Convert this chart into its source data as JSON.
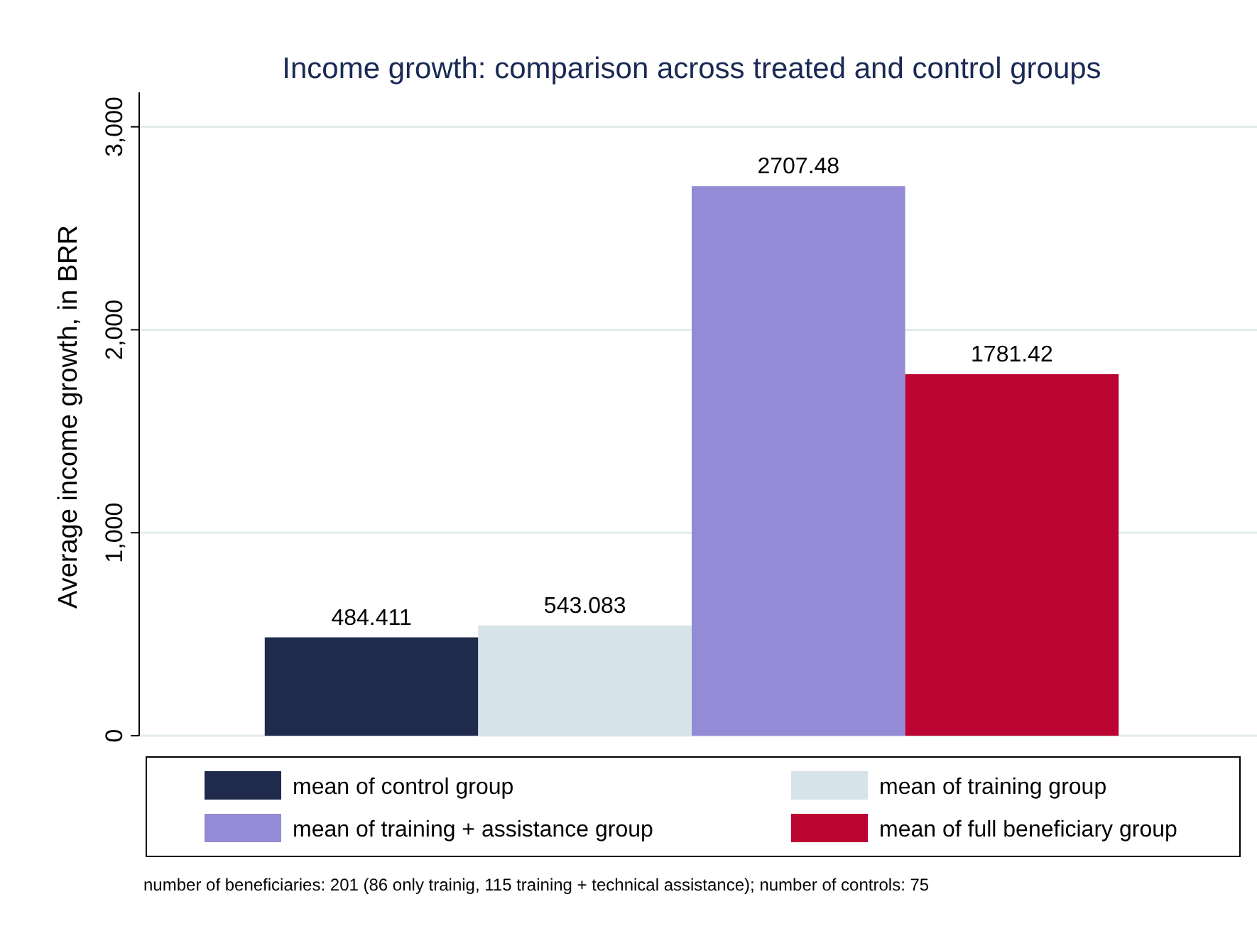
{
  "chart_data": {
    "type": "bar",
    "title": "Income growth: comparison across treated and control groups",
    "ylabel": "Average income growth, in BRR",
    "categories": [
      null
    ],
    "series": [
      {
        "name": "mean of control group",
        "color": "#1f2a4d",
        "values": [
          484.411
        ]
      },
      {
        "name": "mean of training group",
        "color": "#d6e3e8",
        "values": [
          543.083
        ]
      },
      {
        "name": "mean of training + assistance group",
        "color": "#938bd6",
        "values": [
          2707.48
        ]
      },
      {
        "name": "mean of full beneficiary group",
        "color": "#bb0431",
        "values": [
          1781.42
        ]
      }
    ],
    "ylim": [
      0,
      3170
    ],
    "yticks": [
      0,
      {
        "value": 1000,
        "label": "1,000"
      },
      {
        "value": 2000,
        "label": "2,000"
      },
      {
        "value": 3000,
        "label": "3,000"
      }
    ],
    "grid": "y",
    "legend": "bottom",
    "data_labels": true,
    "annotations": [
      "number of beneficiaries: 201 (86 only trainig, 115 training + technical assistance); number of controls: 75"
    ]
  }
}
